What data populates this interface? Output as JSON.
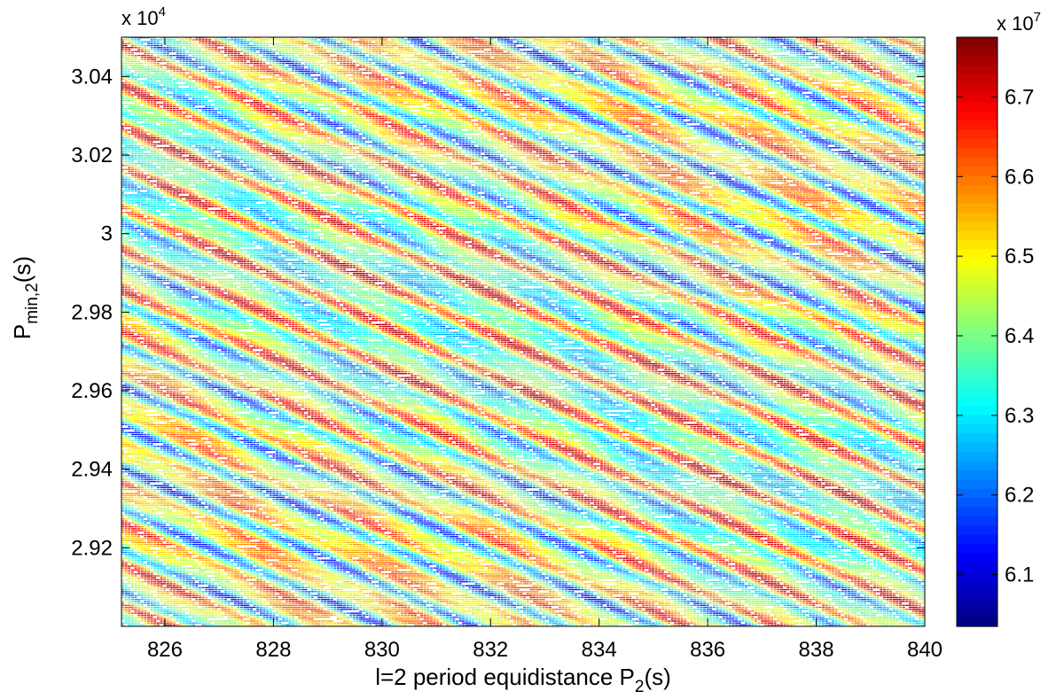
{
  "chart_data": {
    "type": "heatmap",
    "subtype": "contour",
    "title": "",
    "xlabel": {
      "prefix": "l=2 period equidistance P",
      "sub": "2",
      "suffix": "(s)"
    },
    "ylabel": {
      "prefix": "P",
      "sub": "min,2",
      "suffix": "(s)"
    },
    "xlim": [
      825.2,
      840
    ],
    "ylim": [
      29000,
      30500
    ],
    "y_multiplier": {
      "base": "x 10",
      "exp": "4"
    },
    "x_ticks": [
      {
        "value": 826,
        "label": "826"
      },
      {
        "value": 828,
        "label": "828"
      },
      {
        "value": 830,
        "label": "830"
      },
      {
        "value": 832,
        "label": "832"
      },
      {
        "value": 834,
        "label": "834"
      },
      {
        "value": 836,
        "label": "836"
      },
      {
        "value": 838,
        "label": "838"
      },
      {
        "value": 840,
        "label": "840"
      }
    ],
    "y_ticks": [
      {
        "value": 29200,
        "label": "2.92"
      },
      {
        "value": 29400,
        "label": "2.94"
      },
      {
        "value": 29600,
        "label": "2.96"
      },
      {
        "value": 29800,
        "label": "2.98"
      },
      {
        "value": 30000,
        "label": "3"
      },
      {
        "value": 30200,
        "label": "3.02"
      },
      {
        "value": 30400,
        "label": "3.04"
      }
    ],
    "colorbar": {
      "colormap": "jet",
      "range": [
        60350000,
        67750000
      ],
      "multiplier": {
        "base": "x 10",
        "exp": "7"
      },
      "ticks": [
        {
          "value": 61000000,
          "label": "6.1"
        },
        {
          "value": 62000000,
          "label": "6.2"
        },
        {
          "value": 63000000,
          "label": "6.3"
        },
        {
          "value": 64000000,
          "label": "6.4"
        },
        {
          "value": 65000000,
          "label": "6.5"
        },
        {
          "value": 66000000,
          "label": "6.6"
        },
        {
          "value": 67000000,
          "label": "6.7"
        }
      ]
    },
    "field": {
      "mean": 64400000,
      "band_slope_s_per_s": -62.5,
      "band_spacing_s": 102,
      "amplitude": 2900000
    },
    "grid": false,
    "legend": "none"
  }
}
